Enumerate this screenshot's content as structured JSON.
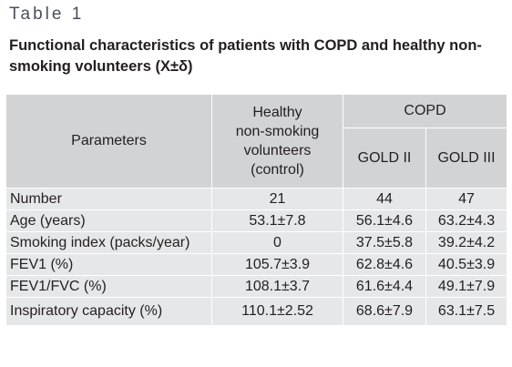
{
  "table_label": "Table 1",
  "caption": "Functional characteristics of patients with COPD and healthy non-smoking volunteers (X±δ)",
  "header": {
    "parameters": "Parameters",
    "control": "Healthy\nnon-smoking\nvolunteers\n(control)",
    "copd": "COPD",
    "gold2": "GOLD II",
    "gold3": "GOLD III"
  },
  "rows": [
    {
      "parameter": "Number",
      "control": "21",
      "gold2": "44",
      "gold3": "47"
    },
    {
      "parameter": "Age (years)",
      "control": "53.1±7.8",
      "gold2": "56.1±4.6",
      "gold3": "63.2±4.3"
    },
    {
      "parameter": "Smoking index (packs/year)",
      "control": "0",
      "gold2": "37.5±5.8",
      "gold3": "39.2±4.2"
    },
    {
      "parameter": "FEV1 (%)",
      "control": "105.7±3.9",
      "gold2": "62.8±4.6",
      "gold3": "40.5±3.9"
    },
    {
      "parameter": "FEV1/FVC (%)",
      "control": "108.1±3.7",
      "gold2": "61.6±4.4",
      "gold3": "49.1±7.9"
    },
    {
      "parameter": "Inspiratory capacity (%)",
      "control": "110.1±2.52",
      "gold2": "68.6±7.9",
      "gold3": "63.1±7.5"
    }
  ]
}
